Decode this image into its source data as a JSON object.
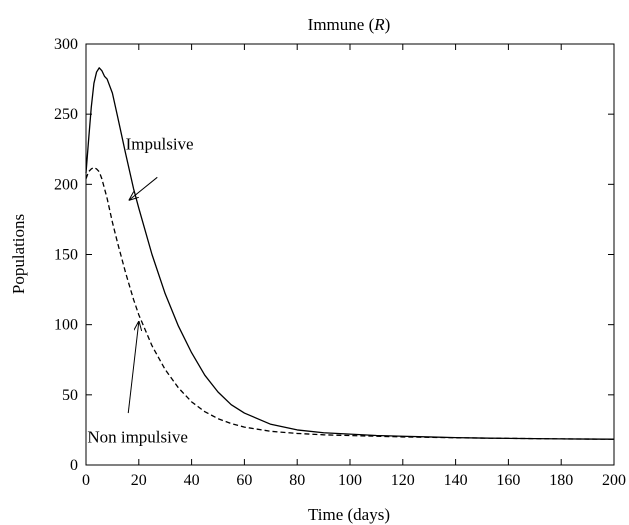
{
  "chart_data": {
    "type": "line",
    "title": "Immune (R)",
    "title_main": "Immune (",
    "title_var": "R",
    "title_close": ")",
    "xlabel": "Time (days)",
    "ylabel": "Populations",
    "xlim": [
      0,
      200
    ],
    "ylim": [
      0,
      300
    ],
    "xticks": [
      0,
      20,
      40,
      60,
      80,
      100,
      120,
      140,
      160,
      180,
      200
    ],
    "yticks": [
      0,
      50,
      100,
      150,
      200,
      250,
      300
    ],
    "grid": false,
    "series": [
      {
        "name": "Impulsive",
        "style": "solid",
        "color": "#000000",
        "x": [
          0,
          1,
          2,
          3,
          4,
          5,
          6,
          7,
          8,
          10,
          12,
          15,
          18,
          20,
          25,
          30,
          35,
          40,
          45,
          50,
          55,
          60,
          70,
          80,
          90,
          100,
          110,
          120,
          130,
          140,
          150,
          160,
          170,
          180,
          190,
          200
        ],
        "y": [
          208,
          232,
          255,
          272,
          280,
          283,
          281,
          277,
          275,
          265,
          248,
          222,
          197,
          183,
          150,
          122,
          99,
          80,
          64,
          52,
          43,
          37,
          29,
          25,
          23,
          22,
          21,
          20.5,
          20,
          19.5,
          19.2,
          19,
          18.8,
          18.6,
          18.5,
          18.4
        ]
      },
      {
        "name": "Non impulsive",
        "style": "dashed",
        "color": "#000000",
        "x": [
          0,
          1,
          2,
          3,
          4,
          5,
          6,
          8,
          10,
          12,
          15,
          18,
          20,
          25,
          30,
          35,
          40,
          45,
          50,
          55,
          60,
          70,
          80,
          90,
          100,
          110,
          120,
          130,
          140,
          150,
          160,
          170,
          180,
          190,
          200
        ],
        "y": [
          204,
          209,
          211,
          212,
          211,
          209,
          204,
          190,
          173,
          158,
          137,
          118,
          107,
          85,
          68,
          55,
          45,
          38,
          33,
          29.5,
          27,
          24,
          22.5,
          21.5,
          21,
          20.5,
          20,
          19.7,
          19.4,
          19.2,
          19,
          18.8,
          18.6,
          18.5,
          18.4
        ]
      }
    ],
    "annotations": [
      {
        "text": "Impulsive",
        "series": "Impulsive"
      },
      {
        "text": "Non impulsive",
        "series": "Non impulsive"
      }
    ]
  }
}
